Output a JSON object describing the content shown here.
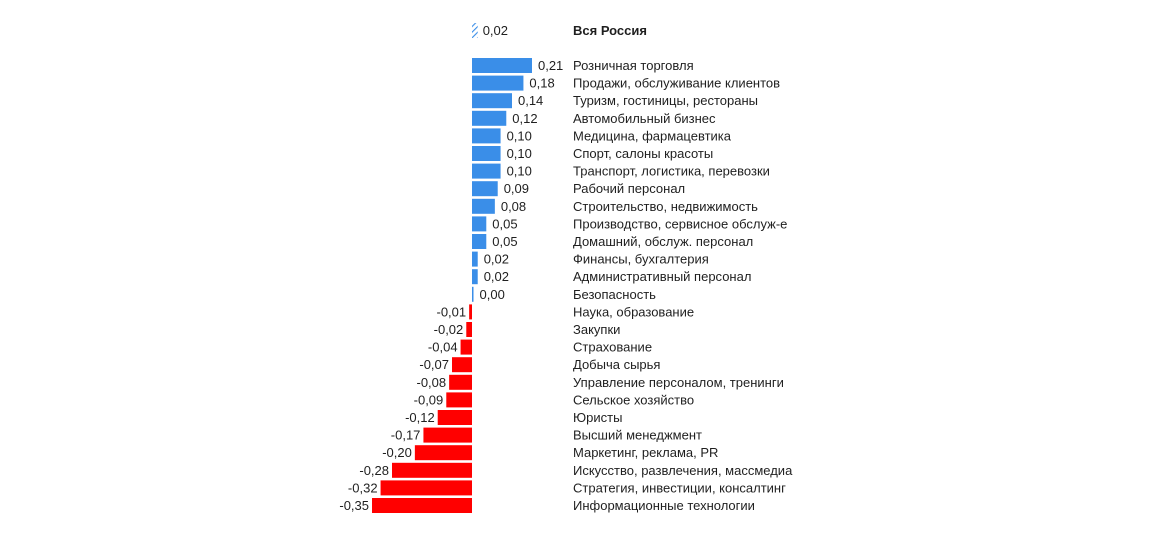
{
  "chart_data": {
    "type": "bar",
    "orientation": "horizontal",
    "colors": {
      "positive": "#3a8ee8",
      "negative": "#ff0000",
      "total": "#3a8ee8",
      "text": "#1f1f1f"
    },
    "total": {
      "label": "Вся Россия",
      "value": 0.02,
      "value_label": "0,02",
      "pattern": "hatched"
    },
    "categories": [
      "Розничная торговля",
      "Продажи, обслуживание клиентов",
      "Туризм, гостиницы, рестораны",
      "Автомобильный бизнес",
      "Медицина, фармацевтика",
      "Спорт, салоны красоты",
      "Транспорт, логистика, перевозки",
      "Рабочий персонал",
      "Строительство, недвижимость",
      "Производство, сервисное обслуж-е",
      "Домашний, обслуж. персонал",
      "Финансы, бухгалтерия",
      "Административный персонал",
      "Безопасность",
      "Наука, образование",
      "Закупки",
      "Страхование",
      "Добыча сырья",
      "Управление персоналом, тренинги",
      "Сельское хозяйство",
      "Юристы",
      "Высший менеджмент",
      "Маркетинг, реклама, PR",
      "Искусство, развлечения, массмедиа",
      "Стратегия, инвестиции, консалтинг",
      "Информационные технологии"
    ],
    "values": [
      0.21,
      0.18,
      0.14,
      0.12,
      0.1,
      0.1,
      0.1,
      0.09,
      0.08,
      0.05,
      0.05,
      0.02,
      0.02,
      0.0,
      -0.01,
      -0.02,
      -0.04,
      -0.07,
      -0.08,
      -0.09,
      -0.12,
      -0.17,
      -0.2,
      -0.28,
      -0.32,
      -0.35
    ],
    "value_labels": [
      "0,21",
      "0,18",
      "0,14",
      "0,12",
      "0,10",
      "0,10",
      "0,10",
      "0,09",
      "0,08",
      "0,05",
      "0,05",
      "0,02",
      "0,02",
      "0,00",
      "-0,01",
      "-0,02",
      "-0,04",
      "-0,07",
      "-0,08",
      "-0,09",
      "-0,12",
      "-0,17",
      "-0,20",
      "-0,28",
      "-0,32",
      "-0,35"
    ],
    "grid": false,
    "legend": "none"
  }
}
